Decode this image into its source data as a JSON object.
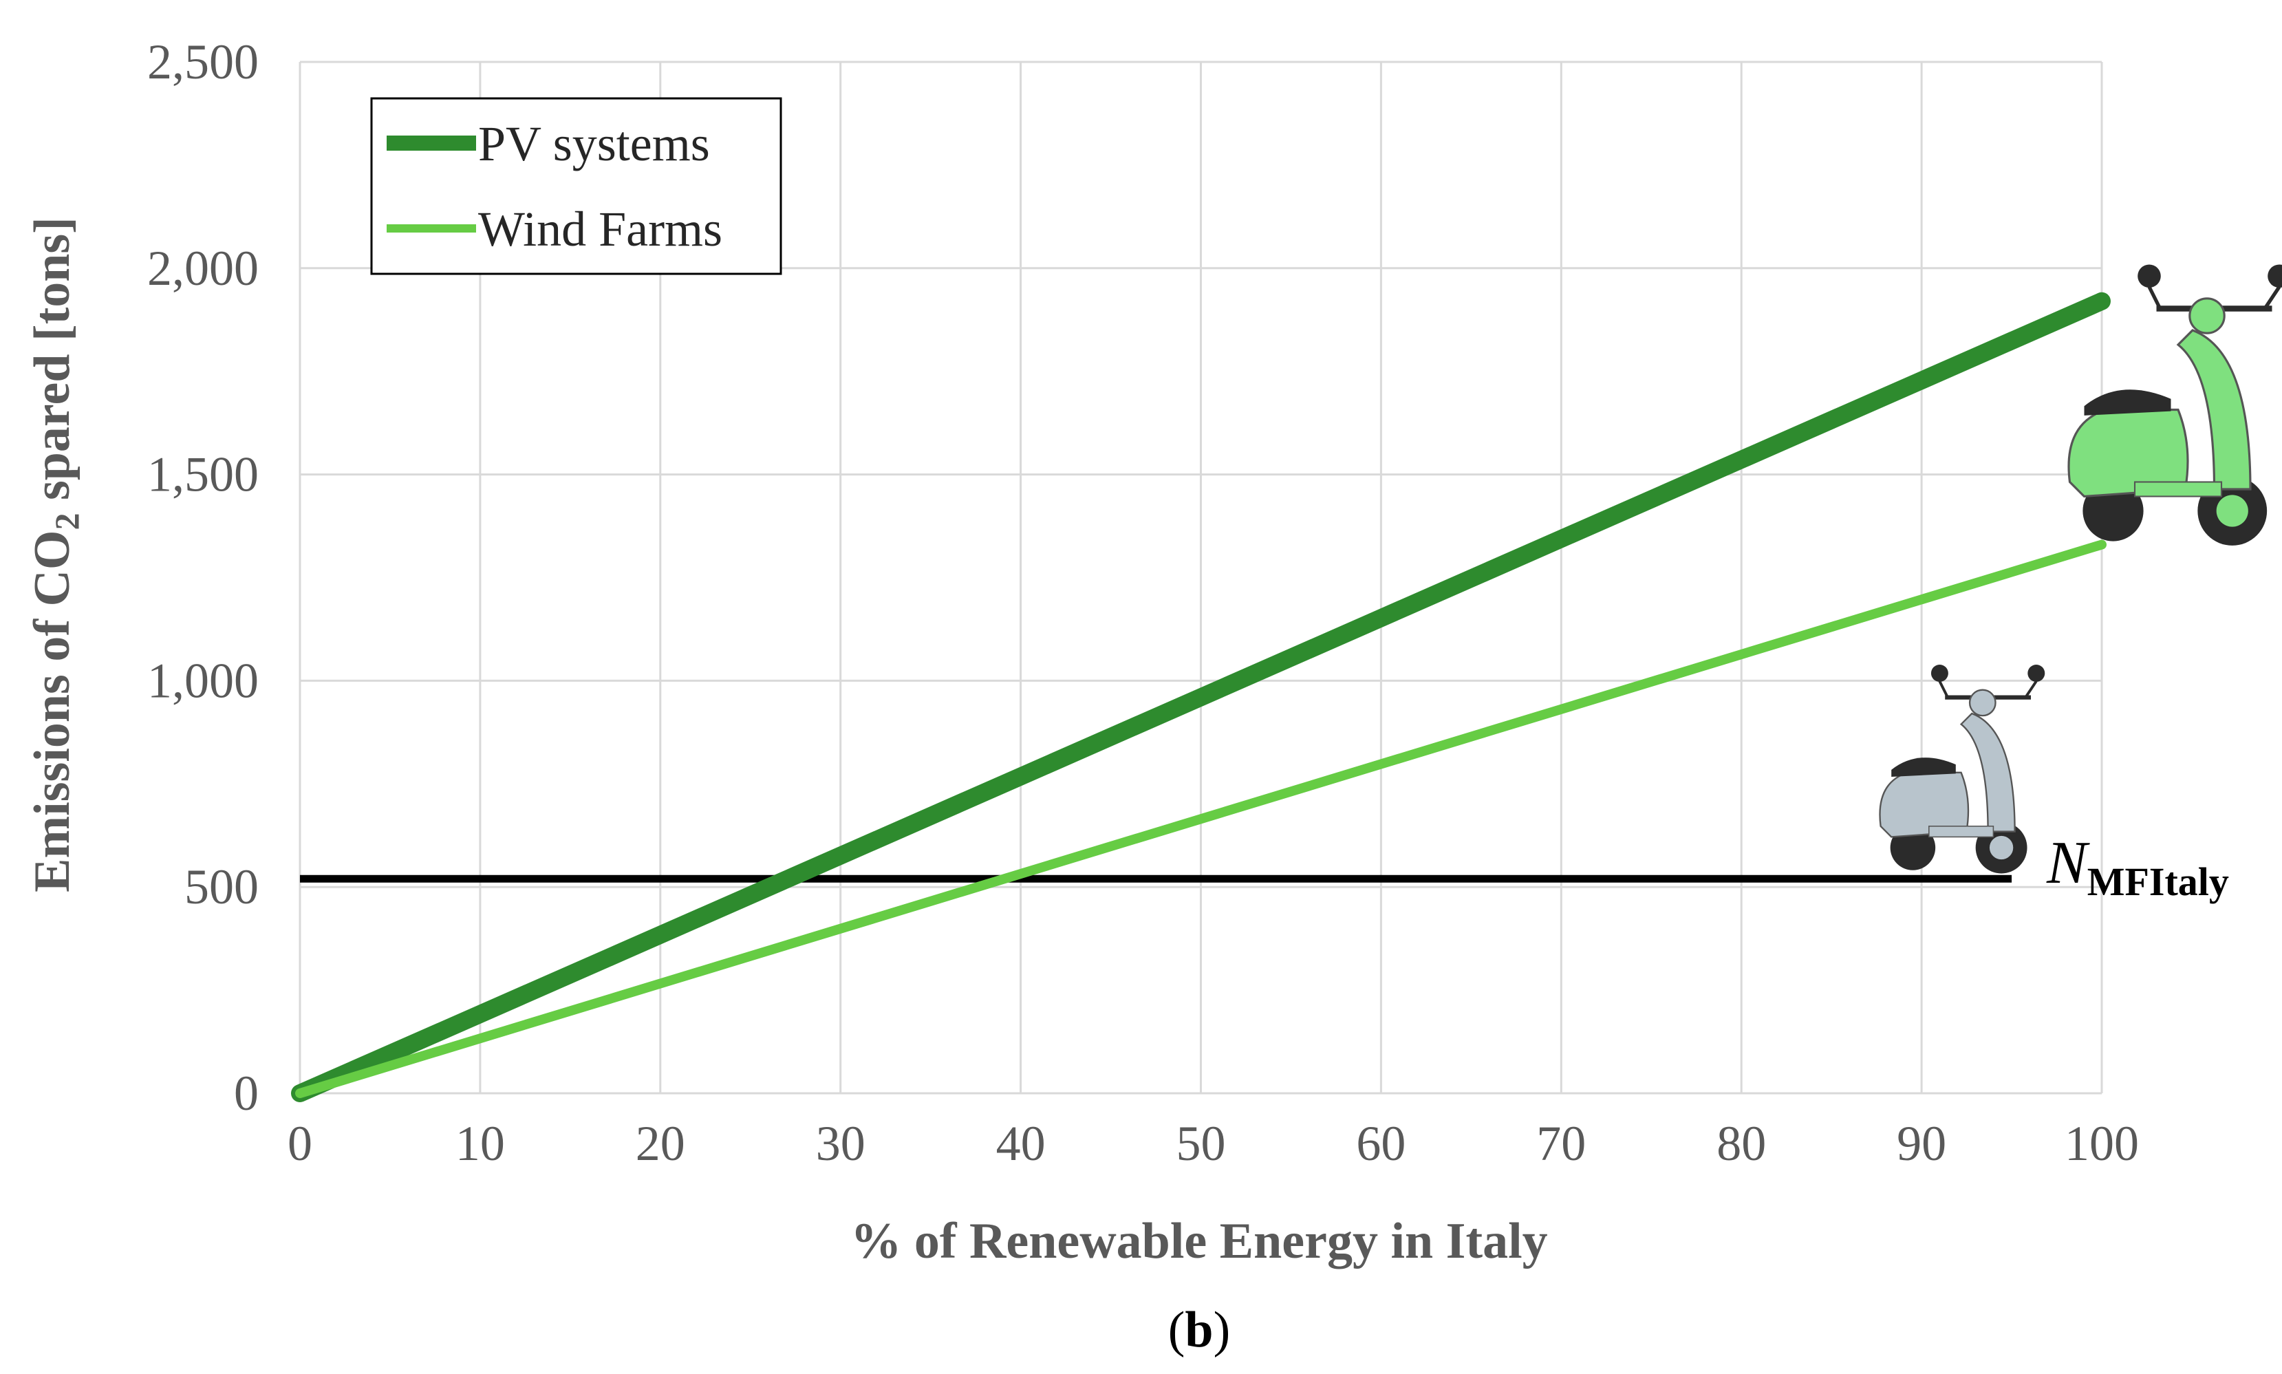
{
  "chart_data": {
    "type": "line",
    "x": [
      0,
      100
    ],
    "series": [
      {
        "name": "PV systems",
        "x": [
          0,
          100
        ],
        "values": [
          0,
          1920
        ],
        "color": "#2e8b2e"
      },
      {
        "name": "Wind Farms",
        "x": [
          0,
          100
        ],
        "values": [
          0,
          1330
        ],
        "color": "#66cc44"
      }
    ],
    "reference_line": {
      "prefix": "N",
      "subscript": "MFItaly",
      "y": 520,
      "x_end": 95,
      "color": "#000000"
    },
    "xlabel": "% of Renewable Energy in Italy",
    "ylabel_parts": {
      "before": "Emissions of CO",
      "subscript": "2",
      "after": " spared [tons]"
    },
    "xlim": [
      0,
      100
    ],
    "ylim": [
      0,
      2500
    ],
    "xticks": [
      0,
      10,
      20,
      30,
      40,
      50,
      60,
      70,
      80,
      90,
      100
    ],
    "yticks": [
      0,
      500,
      1000,
      1500,
      2000,
      2500
    ],
    "ytick_labels": [
      "0",
      "500",
      "1,000",
      "1,500",
      "2,000",
      "2,500"
    ],
    "grid": true,
    "legend_position": "top-left",
    "caption_parts": {
      "open": "(",
      "letter": "b",
      "close": ")"
    },
    "icons": [
      {
        "name": "scooter-green-icon",
        "color": "#7fe07f"
      },
      {
        "name": "scooter-gray-icon",
        "color": "#b8c4cc"
      }
    ]
  }
}
